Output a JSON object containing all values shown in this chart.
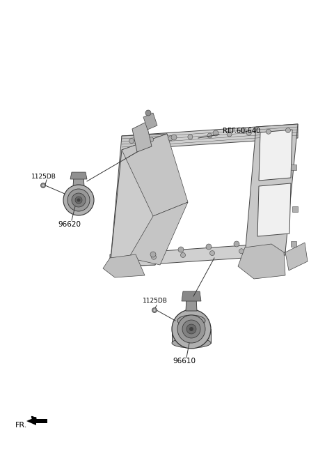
{
  "bg_color": "#ffffff",
  "fig_width": 4.8,
  "fig_height": 6.57,
  "dpi": 100,
  "ref_label": "REF.60-640",
  "label_1125db_left": "1125DB",
  "label_96620": "96620",
  "label_1125db_right": "1125DB",
  "label_96610": "96610",
  "fr_label": "FR.",
  "line_color": "#333333",
  "label_color": "#000000",
  "horn_gray_light": "#b8b8b8",
  "horn_gray_mid": "#989898",
  "horn_gray_dark": "#787878",
  "frame_gray_light": "#e0e0e0",
  "frame_gray_mid": "#c0c0c0",
  "frame_outline": "#444444"
}
